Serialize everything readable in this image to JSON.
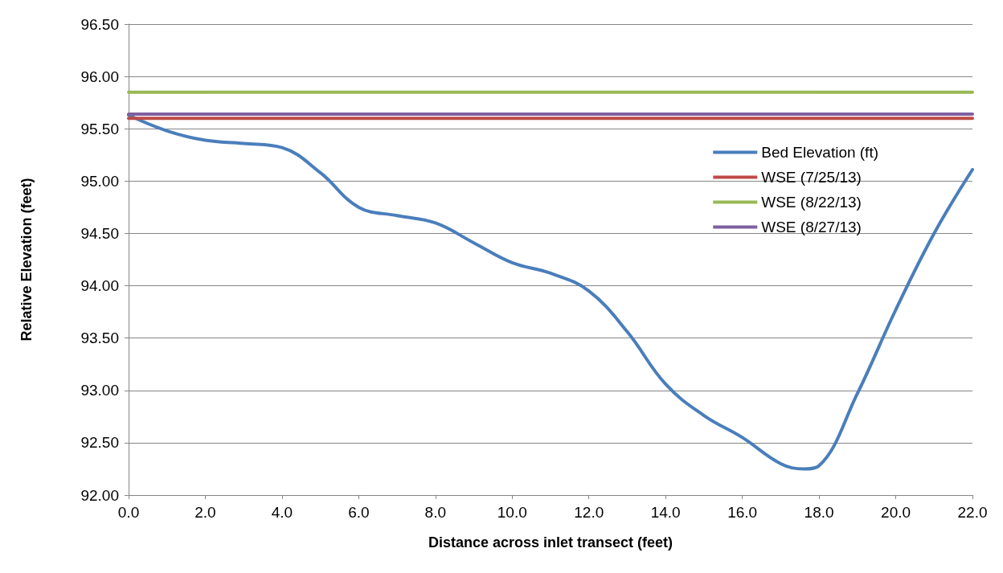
{
  "chart_data": {
    "type": "line",
    "xlabel": "Distance across inlet transect (feet)",
    "ylabel": "Relative Elevation (feet)",
    "xlim": [
      0,
      22
    ],
    "xticks": [
      {
        "value": 0,
        "label": "0.0"
      },
      {
        "value": 2,
        "label": "2.0"
      },
      {
        "value": 4,
        "label": "4.0"
      },
      {
        "value": 6,
        "label": "6.0"
      },
      {
        "value": 8,
        "label": "8.0"
      },
      {
        "value": 10,
        "label": "10.0"
      },
      {
        "value": 12,
        "label": "12.0"
      },
      {
        "value": 14,
        "label": "14.0"
      },
      {
        "value": 16,
        "label": "16.0"
      },
      {
        "value": 18,
        "label": "18.0"
      },
      {
        "value": 20,
        "label": "20.0"
      },
      {
        "value": 22,
        "label": "22.0"
      }
    ],
    "ylim": [
      92,
      96.5
    ],
    "yticks": [
      {
        "value": 92,
        "label": "92.00"
      },
      {
        "value": 92.5,
        "label": "92.50"
      },
      {
        "value": 93,
        "label": "93.00"
      },
      {
        "value": 93.5,
        "label": "93.50"
      },
      {
        "value": 94,
        "label": "94.00"
      },
      {
        "value": 94.5,
        "label": "94.50"
      },
      {
        "value": 95,
        "label": "95.00"
      },
      {
        "value": 95.5,
        "label": "95.50"
      },
      {
        "value": 96,
        "label": "96.00"
      },
      {
        "value": 96.5,
        "label": "96.50"
      }
    ],
    "grid": "y",
    "legend": "right",
    "marker": "none",
    "line_style": "solid",
    "series": [
      {
        "name": "Bed Elevation (ft)",
        "color": "#4a7ebb",
        "x": [
          0,
          1,
          2,
          3,
          4,
          5,
          6,
          7,
          8,
          9,
          10,
          11,
          12,
          13,
          14,
          15,
          16,
          17,
          17.6,
          18,
          19,
          20,
          21,
          22
        ],
        "values": [
          95.63,
          95.48,
          95.39,
          95.36,
          95.32,
          95.08,
          94.75,
          94.67,
          94.6,
          94.41,
          94.22,
          94.12,
          93.95,
          93.56,
          93.06,
          92.76,
          92.55,
          92.3,
          92.25,
          92.28,
          92.97,
          93.77,
          94.5,
          95.11
        ]
      },
      {
        "name": "WSE (7/25/13)",
        "color": "#be4b48",
        "x": [
          0,
          22
        ],
        "values": [
          95.6,
          95.6
        ]
      },
      {
        "name": "WSE (8/22/13)",
        "color": "#98b954",
        "x": [
          0,
          22
        ],
        "values": [
          95.85,
          95.85
        ]
      },
      {
        "name": "WSE (8/27/13)",
        "color": "#7d60a0",
        "x": [
          0,
          22
        ],
        "values": [
          95.64,
          95.64
        ]
      }
    ]
  }
}
